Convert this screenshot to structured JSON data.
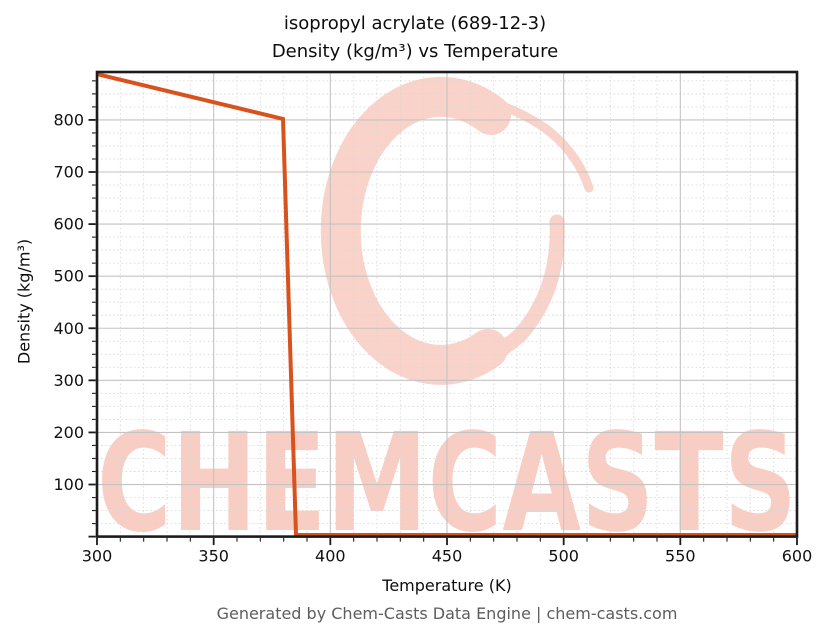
{
  "header": {
    "title_line1": "isopropyl acrylate (689-12-3)",
    "title_line2": "Density (kg/m³) vs Temperature"
  },
  "footer": {
    "text": "Generated by Chem-Casts Data Engine | chem-casts.com"
  },
  "watermark": {
    "text": "CHEMCASTS",
    "logo": "brush-stroke-c-ring",
    "color_logo": "#f9d3c9",
    "color_text": "#f8cec4"
  },
  "colors": {
    "line": "#d8521e",
    "grid_major": "#c3c3c3",
    "grid_minor": "#d8d8d8",
    "spine": "#1c1c1c",
    "tick_label": "#111111",
    "footer_text": "#5d5d5d"
  },
  "chart_data": {
    "type": "line",
    "title": "isopropyl acrylate (689-12-3) Density (kg/m³) vs Temperature",
    "xlabel": "Temperature (K)",
    "ylabel": "Density (kg/m³)",
    "xlim": [
      300,
      600
    ],
    "ylim": [
      0,
      892
    ],
    "xticks": [
      300,
      350,
      400,
      450,
      500,
      550,
      600
    ],
    "yticks": [
      100,
      200,
      300,
      400,
      500,
      600,
      700,
      800
    ],
    "minor_x_step": 10,
    "minor_y_step": 25,
    "grid": true,
    "legend": "none",
    "series": [
      {
        "name": "Density",
        "color": "#d8521e",
        "points": [
          [
            300,
            888
          ],
          [
            379.7,
            802
          ],
          [
            385.3,
            3
          ],
          [
            600,
            3
          ]
        ],
        "note": "liquid density declines from ~888 kg/m³ at 300 K to ~802 kg/m³ at ~380 K, then drops sharply to ~3 kg/m³ by ~385 K and stays flat to 600 K"
      }
    ]
  }
}
